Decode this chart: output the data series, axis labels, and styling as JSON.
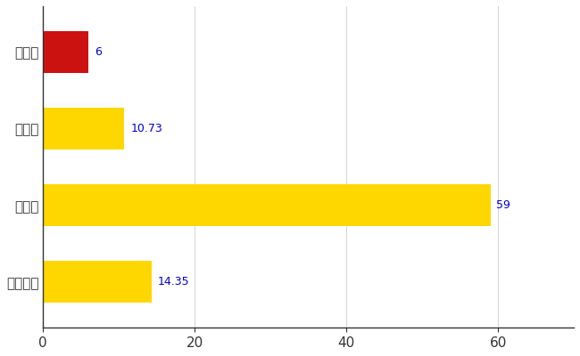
{
  "categories": [
    "雫石町",
    "県平均",
    "県最大",
    "全国平均"
  ],
  "values": [
    6,
    10.73,
    59,
    14.35
  ],
  "labels": [
    "6",
    "10.73",
    "59",
    "14.35"
  ],
  "bar_colors": [
    "#CC1111",
    "#FFD700",
    "#FFD700",
    "#FFD700"
  ],
  "xlim": [
    0,
    70
  ],
  "xticks": [
    0,
    20,
    40,
    60
  ],
  "background_color": "#FFFFFF",
  "grid_color": "#CCCCCC",
  "label_color": "#0000CC",
  "bar_height": 0.55,
  "figsize": [
    6.5,
    4.0
  ],
  "dpi": 100
}
